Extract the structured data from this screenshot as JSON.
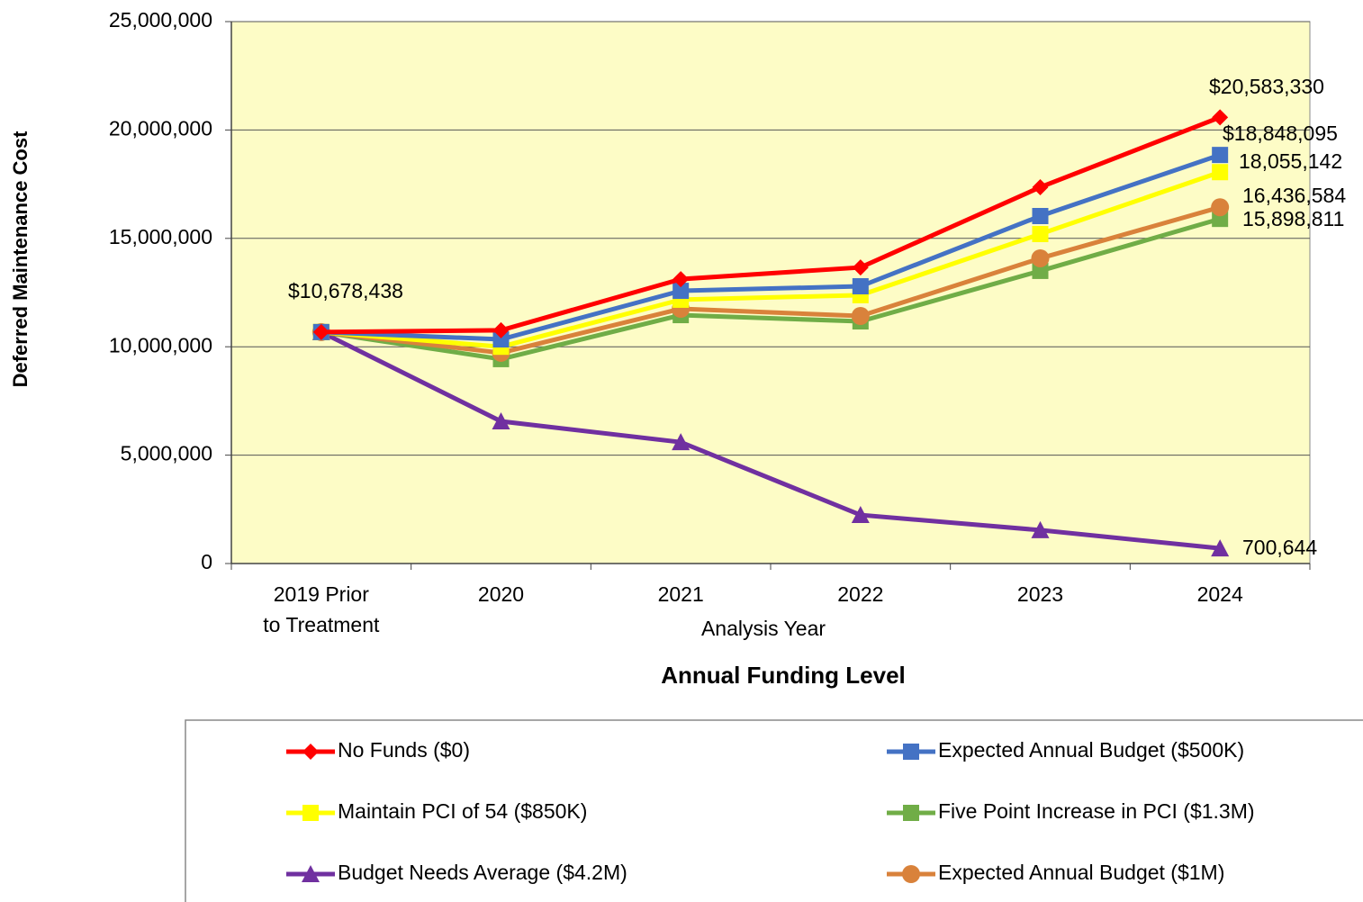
{
  "chart_data": {
    "type": "line",
    "x_label": "Analysis Year",
    "subtitle": "Annual Funding Level",
    "y_label": "Deferred Maintenance Cost",
    "categories": [
      "2019 Prior\nto Treatment",
      "2020",
      "2021",
      "2022",
      "2023",
      "2024"
    ],
    "ylim": [
      0,
      25000000
    ],
    "yticks": [
      0,
      {
        "value": 5000000,
        "label": "5,000,000"
      },
      {
        "value": 10000000,
        "label": "10,000,000"
      },
      {
        "value": 15000000,
        "label": "15,000,000"
      },
      {
        "value": 20000000,
        "label": "20,000,000"
      },
      {
        "value": 25000000,
        "label": "25,000,000"
      }
    ],
    "grid": true,
    "plot_background": "#fdfcc6",
    "series": [
      {
        "name": "No Funds ($0)",
        "color": "#ff0000",
        "marker": "diamond",
        "values": [
          10678438,
          10760000,
          13120000,
          13660000,
          17360000,
          20583330
        ],
        "value_labels": [
          "$10,678,438",
          null,
          null,
          null,
          null,
          "$20,583,330"
        ]
      },
      {
        "name": "Expected Annual Budget ($500K)",
        "color": "#4472c4",
        "marker": "square",
        "values": [
          10678438,
          10340000,
          12580000,
          12790000,
          16030000,
          18848095
        ],
        "value_labels": [
          null,
          null,
          null,
          null,
          null,
          "$18,848,095"
        ]
      },
      {
        "name": "Maintain PCI of 54 ($850K)",
        "color": "#ffff00",
        "marker": "square",
        "values": [
          10678438,
          10000000,
          12170000,
          12380000,
          15200000,
          18055142
        ],
        "value_labels": [
          null,
          null,
          null,
          null,
          null,
          "18,055,142"
        ]
      },
      {
        "name": "Five Point Increase in PCI ($1.3M)",
        "color": "#70ad47",
        "marker": "square",
        "values": [
          10678438,
          9430000,
          11460000,
          11170000,
          13500000,
          15898811
        ],
        "value_labels": [
          null,
          null,
          null,
          null,
          null,
          "15,898,811"
        ]
      },
      {
        "name": "Budget Needs Average ($4.2M)",
        "color": "#7030a0",
        "marker": "triangle",
        "values": [
          10678438,
          6560000,
          5600000,
          2240000,
          1540000,
          700644
        ],
        "value_labels": [
          null,
          null,
          null,
          null,
          null,
          "700,644"
        ]
      },
      {
        "name": "Expected Annual Budget ($1M)",
        "color": "#d9823b",
        "marker": "circle",
        "values": [
          10678438,
          9720000,
          11750000,
          11420000,
          14080000,
          16436584
        ],
        "value_labels": [
          null,
          null,
          null,
          null,
          null,
          "16,436,584"
        ]
      }
    ]
  }
}
